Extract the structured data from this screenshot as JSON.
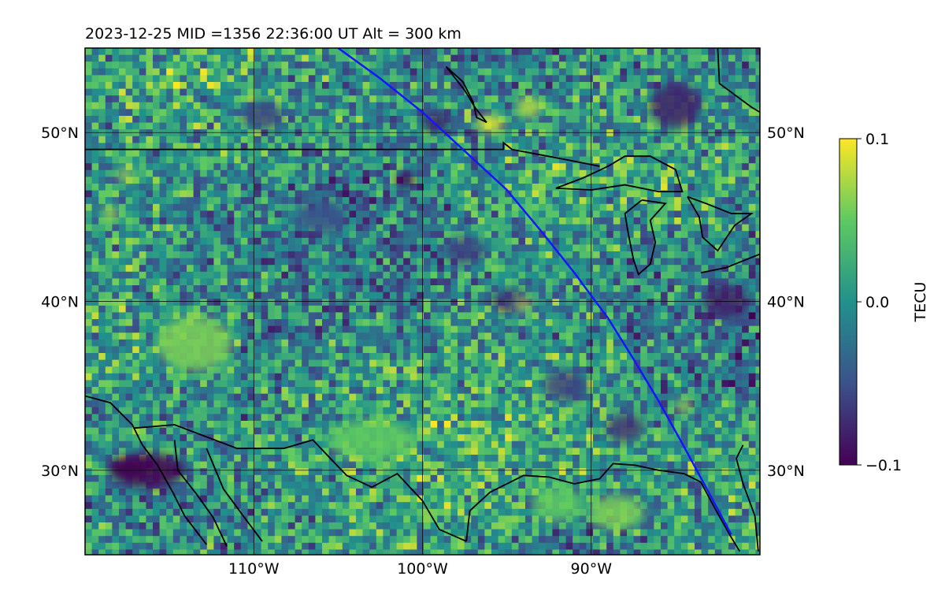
{
  "title": "2023-12-25  MID =1356    22:36:00  UT  Alt = 300 km",
  "map": {
    "lon_range": [
      -120,
      -80
    ],
    "lat_range": [
      25,
      55
    ],
    "lat_ticks": [
      {
        "value": 30,
        "label": "30°N"
      },
      {
        "value": 40,
        "label": "40°N"
      },
      {
        "value": 50,
        "label": "50°N"
      }
    ],
    "lon_ticks": [
      {
        "value": -110,
        "label": "110°W"
      },
      {
        "value": -100,
        "label": "100°W"
      },
      {
        "value": -90,
        "label": "90°W"
      }
    ],
    "grid": true,
    "satellite_track": {
      "color": "#1515ff",
      "points": [
        [
          -105.0,
          55.0
        ],
        [
          -102.5,
          53.2
        ],
        [
          -100.0,
          51.2
        ],
        [
          -97.5,
          48.9
        ],
        [
          -95.0,
          46.6
        ],
        [
          -93.0,
          44.2
        ],
        [
          -91.0,
          41.7
        ],
        [
          -89.0,
          39.0
        ],
        [
          -87.5,
          36.6
        ],
        [
          -86.0,
          34.1
        ],
        [
          -84.5,
          31.4
        ],
        [
          -83.2,
          29.0
        ],
        [
          -81.7,
          26.2
        ]
      ]
    },
    "anomalies": [
      {
        "lon": -116.3,
        "lat": 30.0,
        "value": -0.1,
        "rx": 2.2,
        "ry": 1.0
      },
      {
        "lon": -117.4,
        "lat": 30.2,
        "value": -0.1,
        "rx": 1.2,
        "ry": 0.6
      },
      {
        "lon": -85.0,
        "lat": 51.6,
        "value": -0.08,
        "rx": 1.5,
        "ry": 1.3
      },
      {
        "lon": -101.0,
        "lat": 47.2,
        "value": -0.1,
        "rx": 0.5,
        "ry": 0.5
      },
      {
        "lon": -99.2,
        "lat": 50.6,
        "value": -0.08,
        "rx": 0.8,
        "ry": 0.6
      },
      {
        "lon": -82.0,
        "lat": 40.0,
        "value": -0.08,
        "rx": 1.3,
        "ry": 1.0
      },
      {
        "lon": -88.0,
        "lat": 32.5,
        "value": -0.07,
        "rx": 1.1,
        "ry": 0.8
      },
      {
        "lon": -94.8,
        "lat": 40.0,
        "value": -0.07,
        "rx": 1.1,
        "ry": 0.7
      },
      {
        "lon": -96.0,
        "lat": 50.5,
        "value": 0.1,
        "rx": 0.8,
        "ry": 0.45
      },
      {
        "lon": -93.7,
        "lat": 51.5,
        "value": 0.08,
        "rx": 0.7,
        "ry": 0.6
      },
      {
        "lon": -113.5,
        "lat": 37.5,
        "value": 0.06,
        "rx": 2.2,
        "ry": 1.6
      },
      {
        "lon": -103.0,
        "lat": 31.8,
        "value": 0.05,
        "rx": 2.6,
        "ry": 1.2
      },
      {
        "lon": -88.5,
        "lat": 27.5,
        "value": 0.06,
        "rx": 1.6,
        "ry": 1.0
      },
      {
        "lon": -92.0,
        "lat": 28.0,
        "value": 0.05,
        "rx": 1.5,
        "ry": 1.0
      },
      {
        "lon": -118.5,
        "lat": 45.2,
        "value": 0.08,
        "rx": 0.4,
        "ry": 0.4
      },
      {
        "lon": -117.6,
        "lat": 47.5,
        "value": 0.07,
        "rx": 0.5,
        "ry": 0.4
      },
      {
        "lon": -94.0,
        "lat": 39.8,
        "value": 0.08,
        "rx": 0.4,
        "ry": 0.35
      },
      {
        "lon": -84.5,
        "lat": 33.8,
        "value": 0.07,
        "rx": 0.5,
        "ry": 0.4
      },
      {
        "lon": -109.5,
        "lat": 51.0,
        "value": -0.06,
        "rx": 1.2,
        "ry": 0.8
      },
      {
        "lon": -97.5,
        "lat": 43.0,
        "value": -0.06,
        "rx": 1.2,
        "ry": 0.8
      },
      {
        "lon": -91.5,
        "lat": 35.0,
        "value": -0.06,
        "rx": 1.3,
        "ry": 0.9
      },
      {
        "lon": -106.0,
        "lat": 45.0,
        "value": -0.05,
        "rx": 1.5,
        "ry": 1.0
      }
    ]
  },
  "colorbar": {
    "label": "TECU",
    "min": -0.1,
    "max": 0.1,
    "ticks": [
      {
        "value": 0.1,
        "label": "0.1"
      },
      {
        "value": 0.0,
        "label": "0.0"
      },
      {
        "value": -0.1,
        "label": "−0.1"
      }
    ],
    "stops": [
      "#440154",
      "#3b528b",
      "#21918c",
      "#5ec962",
      "#fde725"
    ]
  }
}
